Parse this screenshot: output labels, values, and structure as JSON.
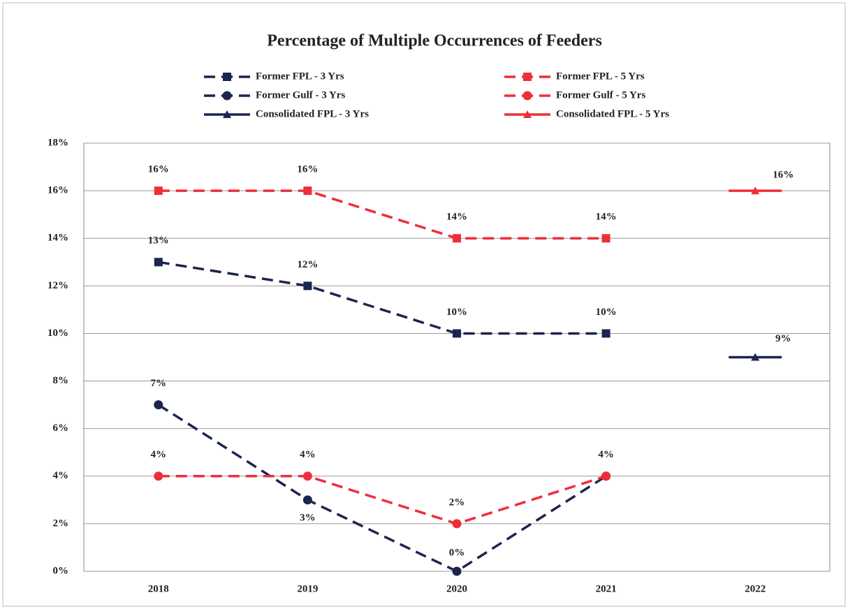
{
  "chart_data": {
    "type": "line",
    "title": "Percentage of Multiple Occurrences of Feeders",
    "categories": [
      "2018",
      "2019",
      "2020",
      "2021",
      "2022"
    ],
    "series": [
      {
        "name": "Former FPL - 3 Yrs",
        "color": "#1b2550",
        "dash": true,
        "marker": "square",
        "values": [
          13,
          12,
          10,
          10,
          null
        ],
        "value_labels": [
          "13%",
          "12%",
          "10%",
          "10%",
          null
        ]
      },
      {
        "name": "Former FPL - 5 Yrs",
        "color": "#ee2e3a",
        "dash": true,
        "marker": "square",
        "values": [
          16,
          16,
          14,
          14,
          null
        ],
        "value_labels": [
          "16%",
          "16%",
          "14%",
          "14%",
          null
        ]
      },
      {
        "name": "Former Gulf - 3 Yrs",
        "color": "#1b2550",
        "dash": true,
        "marker": "circle",
        "values": [
          7,
          3,
          0,
          4,
          null
        ],
        "value_labels": [
          "7%",
          "3%",
          "0%",
          null,
          null
        ]
      },
      {
        "name": "Former Gulf - 5 Yrs",
        "color": "#ee2e3a",
        "dash": true,
        "marker": "circle",
        "values": [
          4,
          4,
          2,
          4,
          null
        ],
        "value_labels": [
          "4%",
          "4%",
          "2%",
          "4%",
          null
        ]
      },
      {
        "name": "Consolidated FPL - 3 Yrs",
        "color": "#1b2550",
        "dash": false,
        "marker": "triangle",
        "values": [
          null,
          null,
          null,
          null,
          9
        ],
        "value_labels": [
          null,
          null,
          null,
          null,
          "9%"
        ]
      },
      {
        "name": "Consolidated FPL - 5 Yrs",
        "color": "#ee2e3a",
        "dash": false,
        "marker": "triangle",
        "values": [
          null,
          null,
          null,
          null,
          16
        ],
        "value_labels": [
          null,
          null,
          null,
          null,
          "16%"
        ]
      }
    ],
    "ylim": [
      0,
      18
    ],
    "yticks": [
      {
        "value": 0,
        "label": "0%"
      },
      {
        "value": 2,
        "label": "2%"
      },
      {
        "value": 4,
        "label": "4%"
      },
      {
        "value": 6,
        "label": "6%"
      },
      {
        "value": 8,
        "label": "8%"
      },
      {
        "value": 10,
        "label": "10%"
      },
      {
        "value": 12,
        "label": "12%"
      },
      {
        "value": 14,
        "label": "14%"
      },
      {
        "value": 16,
        "label": "16%"
      },
      {
        "value": 18,
        "label": "18%"
      }
    ],
    "grid": true
  }
}
